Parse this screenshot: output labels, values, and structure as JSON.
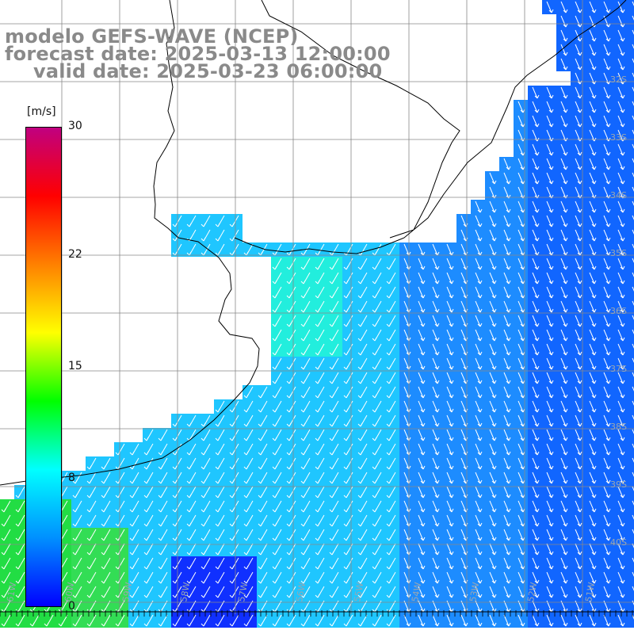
{
  "title": {
    "model": "modelo GEFS-WAVE (NCEP)",
    "forecast": "forecast date: 2025-03-13 12:00:00",
    "valid": "valid date: 2025-03-23 06:00:00"
  },
  "colorbar": {
    "units": "[m/s]",
    "ticks": [
      {
        "value": 30,
        "label": "30"
      },
      {
        "value": 22,
        "label": "22"
      },
      {
        "value": 15,
        "label": "15"
      },
      {
        "value": 8,
        "label": "8"
      },
      {
        "value": 0,
        "label": "0"
      }
    ],
    "colors": [
      "#0000ff",
      "#0090ff",
      "#00ffff",
      "#00ff00",
      "#ffff00",
      "#ff8000",
      "#ff0000",
      "#c00080"
    ]
  },
  "map": {
    "parameter": "wind speed and direction",
    "ocean_color": "#1a9cff",
    "land_color": "#ffffff",
    "lat_labels": [
      "32S",
      "33S",
      "34S",
      "35S",
      "36S",
      "37S",
      "38S",
      "39S",
      "40S"
    ],
    "lon_labels": [
      "61W",
      "60W",
      "59W",
      "58W",
      "57W",
      "56W",
      "55W",
      "54W",
      "53W",
      "52W",
      "51W"
    ]
  }
}
